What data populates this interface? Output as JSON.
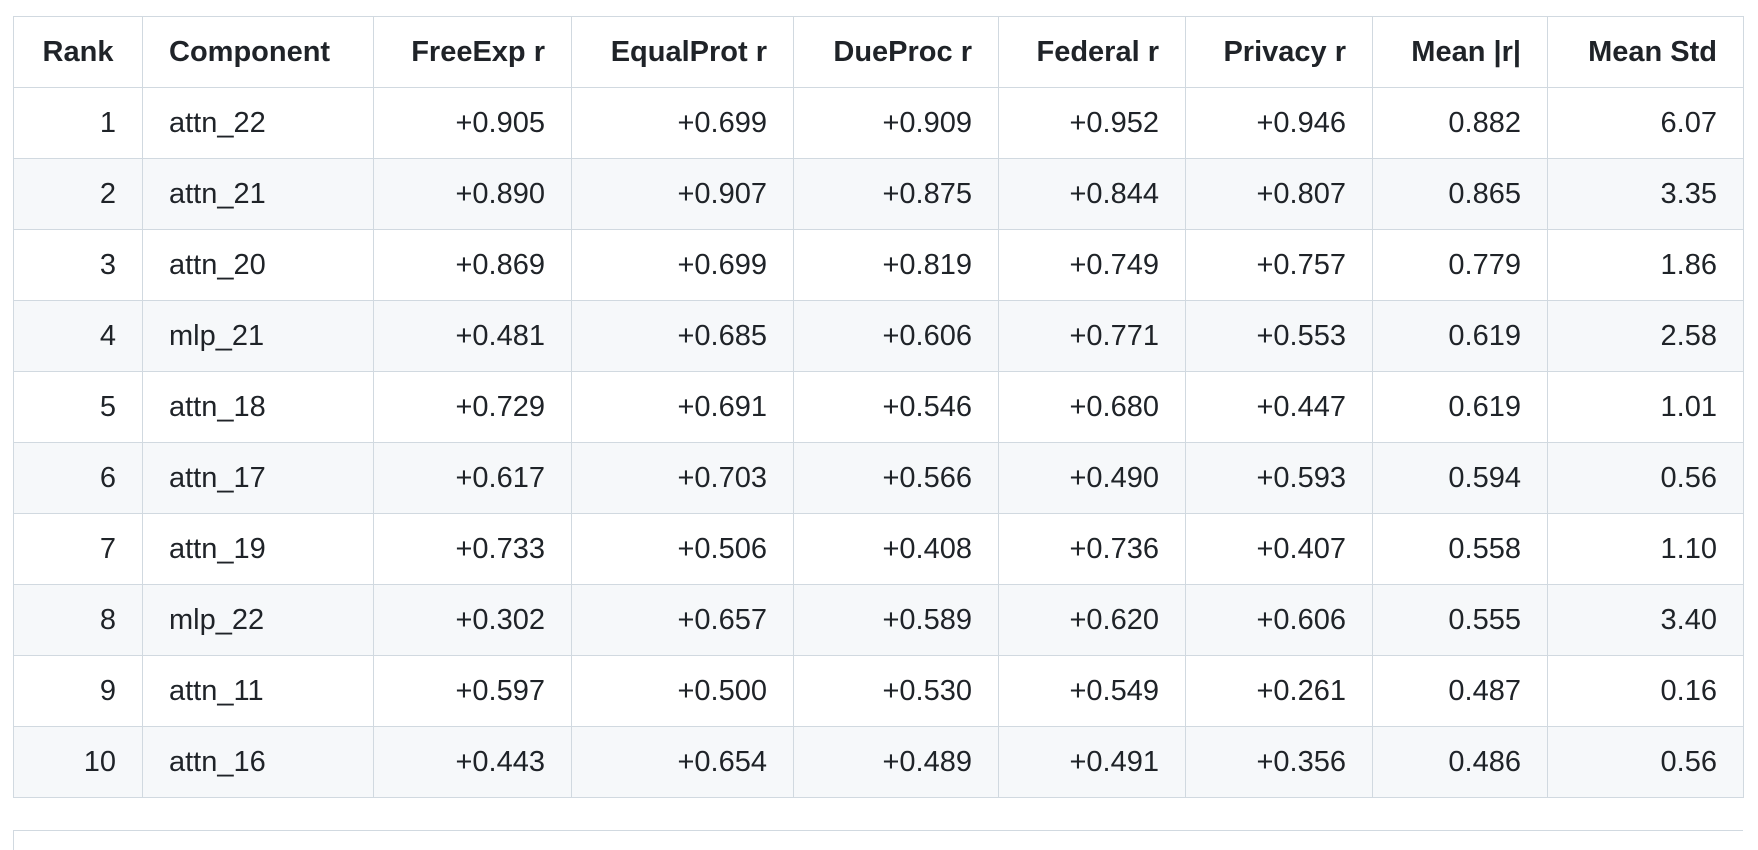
{
  "table": {
    "header": [
      "Rank",
      "Component",
      "FreeExp r",
      "EqualProt r",
      "DueProc r",
      "Federal r",
      "Privacy r",
      "Mean |r|",
      "Mean Std"
    ],
    "rows": [
      [
        "1",
        "attn_22",
        "+0.905",
        "+0.699",
        "+0.909",
        "+0.952",
        "+0.946",
        "0.882",
        "6.07"
      ],
      [
        "2",
        "attn_21",
        "+0.890",
        "+0.907",
        "+0.875",
        "+0.844",
        "+0.807",
        "0.865",
        "3.35"
      ],
      [
        "3",
        "attn_20",
        "+0.869",
        "+0.699",
        "+0.819",
        "+0.749",
        "+0.757",
        "0.779",
        "1.86"
      ],
      [
        "4",
        "mlp_21",
        "+0.481",
        "+0.685",
        "+0.606",
        "+0.771",
        "+0.553",
        "0.619",
        "2.58"
      ],
      [
        "5",
        "attn_18",
        "+0.729",
        "+0.691",
        "+0.546",
        "+0.680",
        "+0.447",
        "0.619",
        "1.01"
      ],
      [
        "6",
        "attn_17",
        "+0.617",
        "+0.703",
        "+0.566",
        "+0.490",
        "+0.593",
        "0.594",
        "0.56"
      ],
      [
        "7",
        "attn_19",
        "+0.733",
        "+0.506",
        "+0.408",
        "+0.736",
        "+0.407",
        "0.558",
        "1.10"
      ],
      [
        "8",
        "mlp_22",
        "+0.302",
        "+0.657",
        "+0.589",
        "+0.620",
        "+0.606",
        "0.555",
        "3.40"
      ],
      [
        "9",
        "attn_11",
        "+0.597",
        "+0.500",
        "+0.530",
        "+0.549",
        "+0.261",
        "0.487",
        "0.16"
      ],
      [
        "10",
        "attn_16",
        "+0.443",
        "+0.654",
        "+0.489",
        "+0.491",
        "+0.356",
        "0.486",
        "0.56"
      ]
    ]
  }
}
